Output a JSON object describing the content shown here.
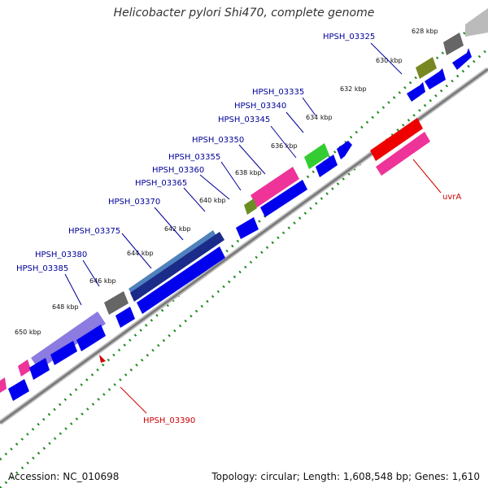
{
  "title": "Helicobacter pylori Shi470, complete genome",
  "footer": {
    "accession": "Accession: NC_010698",
    "summary": "Topology: circular; Length: 1,608,548 bp; Genes: 1,610"
  },
  "scale": {
    "ticks": [
      "628 kbp",
      "630 kbp",
      "632 kbp",
      "634 kbp",
      "636 kbp",
      "638 kbp",
      "640 kbp",
      "642 kbp",
      "644 kbp",
      "646 kbp",
      "648 kbp",
      "650 kbp"
    ]
  },
  "genes": {
    "forward": [
      "HPSH_03325",
      "HPSH_03335",
      "HPSH_03340",
      "HPSH_03345",
      "HPSH_03350",
      "HPSH_03355",
      "HPSH_03360",
      "HPSH_03365",
      "HPSH_03370",
      "HPSH_03375",
      "HPSH_03380",
      "HPSH_03385"
    ],
    "reverse": [
      "uvrA",
      "HPSH_03390"
    ]
  },
  "colors": {
    "cds": "#0000ee",
    "label_forward": "#000099",
    "label_reverse": "#cc0000",
    "backbone": "#999999",
    "tick_dots": "#228b22",
    "red": "#ee0000",
    "pink": "#ee3399",
    "green": "#33cc33",
    "olive": "#778822",
    "gray": "#777777",
    "lightgray": "#bbbbbb",
    "steel": "#4f81bd",
    "navy": "#000066",
    "purple": "#7f6fd8"
  }
}
